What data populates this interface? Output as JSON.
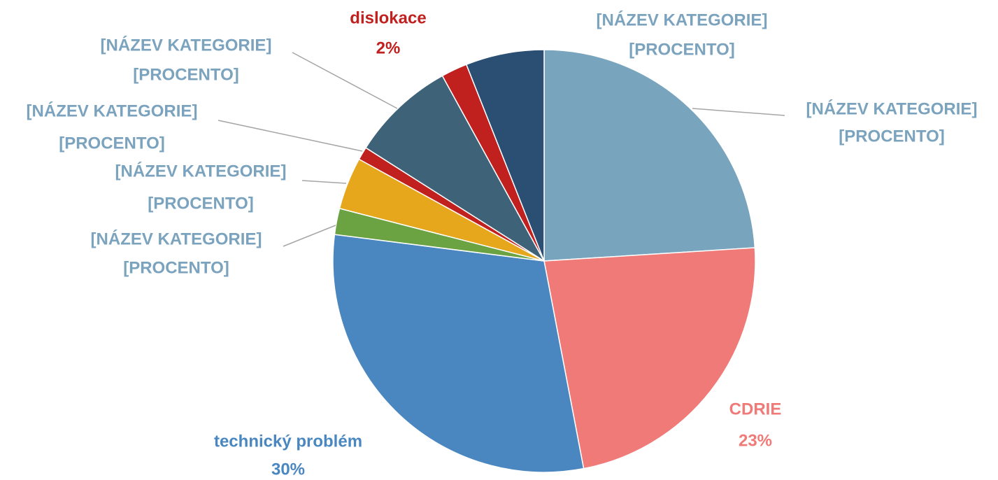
{
  "chart_data": {
    "type": "pie",
    "categories": [
      "[NÁZEV KATEGORIE]",
      "CDRIE",
      "technický problém",
      "[NÁZEV KATEGORIE]",
      "[NÁZEV KATEGORIE]",
      "[NÁZEV KATEGORIE]",
      "[NÁZEV KATEGORIE]",
      "dislokace",
      "[NÁZEV KATEGORIE]"
    ],
    "values": [
      24,
      23,
      30,
      2,
      4,
      1,
      8,
      2,
      6
    ],
    "value_labels": [
      "[PROCENTO]",
      "23%",
      "30%",
      "[PROCENTO]",
      "[PROCENTO]",
      "[PROCENTO]",
      "[PROCENTO]",
      "2%",
      "[PROCENTO]"
    ],
    "colors": [
      "#78a5bd",
      "#f07a77",
      "#4a87c1",
      "#6ba342",
      "#e6a71d",
      "#c0201e",
      "#3e6379",
      "#c0201e",
      "#2a4f73"
    ]
  }
}
